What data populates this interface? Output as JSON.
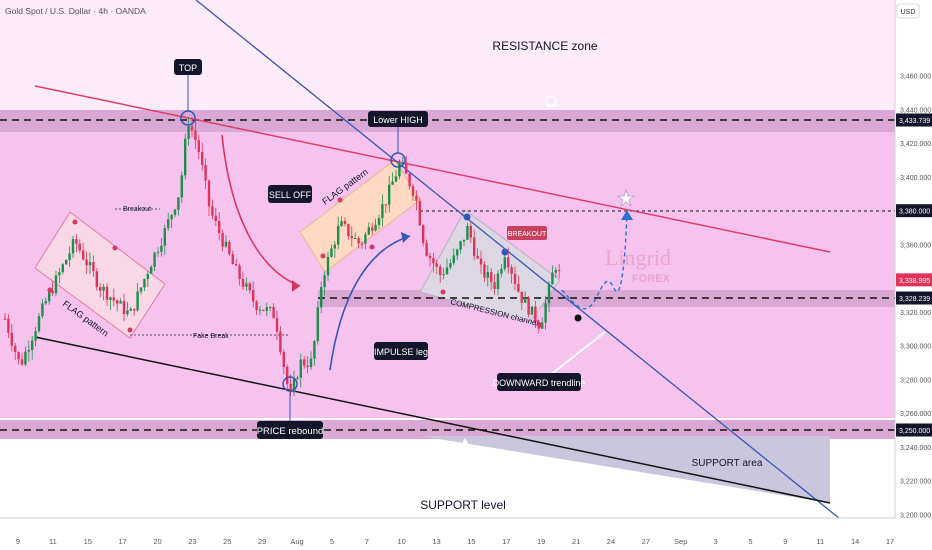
{
  "header": {
    "symbol_line": "Gold Spot / U.S. Dollar · 4h · OANDA",
    "currency": "USD"
  },
  "watermark": {
    "line1": "Lingrid",
    "line2": "FOREX"
  },
  "colors": {
    "pink_zone": "#f4b8ea",
    "band": "#d9a8d4",
    "candle_up": "#1e8f4a",
    "candle_down": "#e0335a",
    "trendline_blue": "#3556b8",
    "resistance_red": "#e23b6b",
    "support_black": "#111111",
    "label_dark": "#14142b",
    "label_red": "#c9405e"
  },
  "chart_data": {
    "type": "candlestick",
    "x_labels": [
      "9",
      "11",
      "15",
      "17",
      "20",
      "23",
      "25",
      "29",
      "Aug",
      "5",
      "7",
      "10",
      "13",
      "15",
      "17",
      "19",
      "21",
      "24",
      "27",
      "Sep",
      "3",
      "5",
      "9",
      "11",
      "14",
      "17"
    ],
    "y_ticks": [
      "3,460.000",
      "3,440.000",
      "3,420.000",
      "3,400.000",
      "3,360.000",
      "3,340.000",
      "3,320.000",
      "3,300.000",
      "3,280.000",
      "3,260.000",
      "3,240.000",
      "3,220.000",
      "3,200.000"
    ],
    "ylim": [
      3195,
      3480
    ],
    "price_tags": [
      "3,433.739",
      "3,380.000",
      "3,338.995",
      "3,328.239",
      "3,250.000"
    ],
    "levels": [
      3433.739,
      3380.0,
      3328.239,
      3250.0
    ],
    "last_price": 3338.995,
    "key_points": [
      {
        "time": "Jul 23",
        "price": 3434
      },
      {
        "time": "Jul 31",
        "price": 3268
      },
      {
        "time": "Aug 8",
        "price": 3408
      },
      {
        "time": "Aug 20",
        "price": 3312
      },
      {
        "time": "Aug 21",
        "price": 3349
      }
    ],
    "annotations": [
      "RESISTANCE zone",
      "TOP",
      "Lower HIGH",
      "SELL OFF",
      "FLAG pattern",
      "Breakout",
      "FLAG pattern",
      "Fake Break",
      "IMPULSE leg",
      "PRICE rebound",
      "COMPRESSION channel",
      "BREAKOUT",
      "DOWNWARD trendline",
      "SUPPORT area",
      "SUPPORT level"
    ]
  }
}
